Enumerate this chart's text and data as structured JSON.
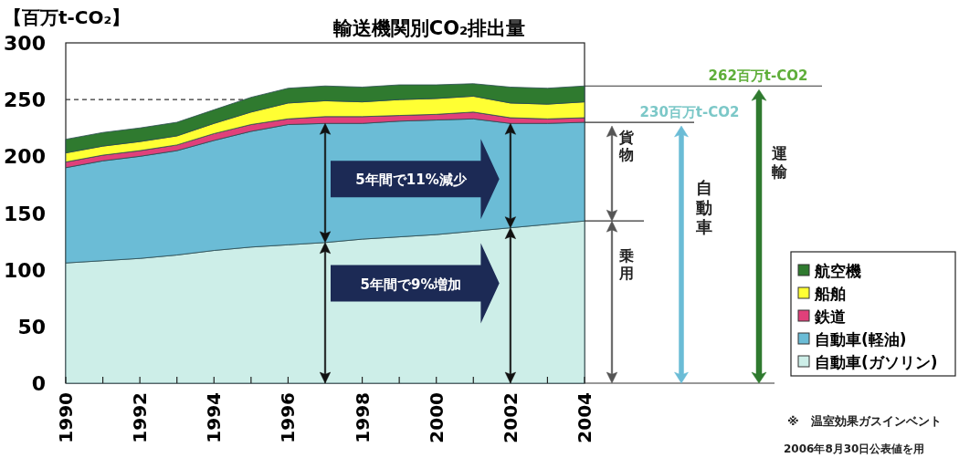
{
  "chart_data": {
    "type": "area",
    "stacked": true,
    "title": "輸送機関別CO₂排出量",
    "ylabel": "【百万t-CO₂】",
    "x": [
      1990,
      1991,
      1992,
      1993,
      1994,
      1995,
      1996,
      1997,
      1998,
      1999,
      2000,
      2001,
      2002,
      2003,
      2004
    ],
    "xlim": [
      1990,
      2004
    ],
    "ylim": [
      0,
      300
    ],
    "xticks": [
      1990,
      {
        "value": 1991,
        "label": null
      },
      1992,
      {
        "value": 1993,
        "label": null
      },
      1994,
      {
        "value": 1995,
        "label": null
      },
      1996,
      {
        "value": 1997,
        "label": null
      },
      1998,
      {
        "value": 1999,
        "label": null
      },
      2000,
      {
        "value": 2001,
        "label": null
      },
      2002,
      {
        "value": 2003,
        "label": null
      },
      2004
    ],
    "yticks": [
      0,
      50,
      100,
      150,
      200,
      250,
      300
    ],
    "series": [
      {
        "name": "自動車(ガソリン)",
        "color": "#cdeee8",
        "values": [
          106,
          108,
          110,
          113,
          117,
          120,
          122,
          124,
          127,
          129,
          131,
          134,
          137,
          140,
          143
        ]
      },
      {
        "name": "自動車(軽油)",
        "color": "#6bbcd6",
        "values": [
          84,
          88,
          90,
          92,
          97,
          102,
          106,
          105,
          102,
          102,
          101,
          99,
          92,
          89,
          87
        ]
      },
      {
        "name": "鉄道",
        "color": "#e0407a",
        "values": [
          5,
          5,
          5,
          5,
          6,
          6,
          5,
          6,
          6,
          5,
          5,
          6,
          5,
          4,
          4
        ]
      },
      {
        "name": "船舶",
        "color": "#ffff33",
        "values": [
          8,
          8,
          8,
          8,
          9,
          11,
          14,
          14,
          13,
          14,
          14,
          14,
          13,
          13,
          14
        ]
      },
      {
        "name": "航空機",
        "color": "#2f7a2f",
        "values": [
          12,
          12,
          12,
          12,
          12,
          13,
          13,
          13,
          13,
          13,
          12,
          11,
          14,
          14,
          14
        ]
      }
    ],
    "ref_lines": [
      {
        "axis": "y",
        "value": 250,
        "line_style": "dashed",
        "color": "#333333"
      }
    ],
    "legend": "bottom right",
    "annotations": [
      "262百万t-CO2",
      "230百万t-CO2",
      "貨物",
      "乗用",
      "自動車",
      "運輸",
      "5年間で11%減少",
      "5年間で9%増加",
      "※　温室効果ガスインベント",
      "2006年8月30日公表値を用"
    ]
  }
}
